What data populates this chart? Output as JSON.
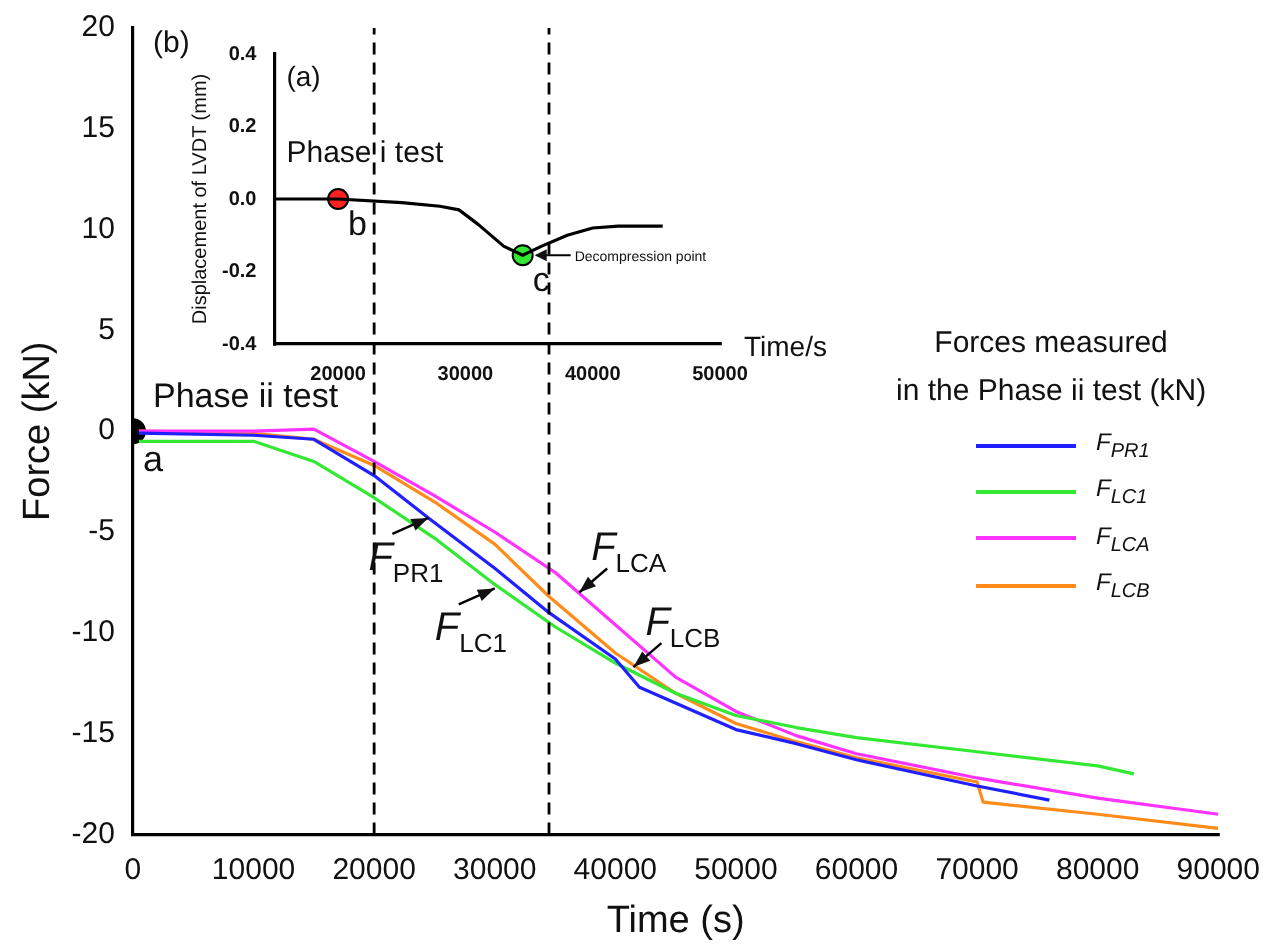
{
  "chart_data": [
    {
      "type": "line",
      "xlabel": "Time (s)",
      "ylabel": "Force (kN)",
      "legend_title": "Forces measured\nin the Phase ii test (kN)",
      "legend": "right",
      "xlim": [
        0,
        90000
      ],
      "xticks": [
        0,
        10000,
        20000,
        30000,
        40000,
        50000,
        60000,
        70000,
        80000,
        90000
      ],
      "ylim": [
        -20,
        20
      ],
      "yticks": [
        -20,
        -15,
        -10,
        -5,
        0,
        5,
        10,
        15,
        20
      ],
      "grid": false,
      "series": [
        {
          "name": "F$_{PR1}$",
          "color": "#1f1fff",
          "x": [
            500,
            10000,
            15000,
            20000,
            24500,
            30000,
            34500,
            40000,
            42000,
            50000,
            55000,
            60000,
            70000,
            76000
          ],
          "values": [
            -0.1,
            -0.2,
            -0.4,
            -2.2,
            -4.3,
            -6.8,
            -9.0,
            -11.3,
            -12.7,
            -14.8,
            -15.5,
            -16.3,
            -17.6,
            -18.3
          ]
        },
        {
          "name": "F$_{LC1}$",
          "color": "#33e833",
          "x": [
            500,
            10000,
            15000,
            20000,
            25000,
            30000,
            35000,
            40000,
            45000,
            50000,
            55000,
            60000,
            70000,
            80000,
            83000
          ],
          "values": [
            -0.5,
            -0.5,
            -1.5,
            -3.3,
            -5.3,
            -7.6,
            -9.7,
            -11.5,
            -13.0,
            -14.1,
            -14.7,
            -15.2,
            -15.9,
            -16.6,
            -17.0
          ]
        },
        {
          "name": "F$_{LCA}$",
          "color": "#ff33ff",
          "x": [
            500,
            10000,
            15000,
            20000,
            25000,
            30000,
            35000,
            40000,
            45000,
            50000,
            55000,
            60000,
            70000,
            80000,
            90000
          ],
          "values": [
            0,
            0,
            0.1,
            -1.5,
            -3.2,
            -5.0,
            -7.0,
            -9.6,
            -12.2,
            -13.9,
            -15.1,
            -16.0,
            -17.2,
            -18.2,
            -19.0
          ]
        },
        {
          "name": "F$_{LCB}$",
          "color": "#ff8c1a",
          "x": [
            500,
            10000,
            15000,
            20000,
            25000,
            30000,
            34500,
            40000,
            45000,
            50000,
            55000,
            60000,
            70000,
            70500,
            80000,
            90000
          ],
          "values": [
            0,
            -0.1,
            -0.4,
            -1.7,
            -3.5,
            -5.6,
            -8.2,
            -11.0,
            -13.0,
            -14.5,
            -15.4,
            -16.2,
            -17.4,
            -18.4,
            -19.0,
            -19.7
          ]
        },
        {
          "type": "scatter",
          "color": "#000000",
          "x": [
            0
          ],
          "values": [
            0
          ]
        }
      ],
      "ref_lines": [
        {
          "axis": "x",
          "value": 20000,
          "line_style": "dashed",
          "color": "#000000"
        },
        {
          "axis": "x",
          "value": 34500,
          "line_style": "dashed",
          "color": "#000000"
        }
      ],
      "annotations": [
        "(b)",
        "Phase ii test",
        {
          "text": "a",
          "x": 0,
          "y": 0
        },
        {
          "text": "F$_{PR1}$",
          "x": 24500,
          "y": -4.3
        },
        {
          "text": "F$_{LC1}$",
          "x": 30000,
          "y": -7.8
        },
        {
          "text": "F$_{LCA}$",
          "x": 37000,
          "y": -8.0
        },
        {
          "text": "F$_{LCB}$",
          "x": 41500,
          "y": -11.7
        }
      ]
    },
    {
      "type": "line",
      "xlabel": "Time/s",
      "ylabel": "Displacement of LVDT (mm)",
      "xlim": [
        15000,
        50000
      ],
      "xticks": [
        20000,
        30000,
        40000,
        50000
      ],
      "ylim": [
        -0.4,
        0.4
      ],
      "yticks": [
        -0.4,
        -0.2,
        {
          "value": 0,
          "label": "0.0"
        },
        0.2,
        0.4
      ],
      "grid": false,
      "series": [
        {
          "color": "#000000",
          "x": [
            15000,
            20000,
            25000,
            28000,
            29500,
            31000,
            33000,
            34500,
            36000,
            38000,
            40000,
            42000,
            44000,
            45500
          ],
          "values": [
            0,
            0,
            -0.01,
            -0.02,
            -0.03,
            -0.07,
            -0.13,
            -0.155,
            -0.13,
            -0.1,
            -0.08,
            -0.075,
            -0.075,
            -0.075
          ]
        },
        {
          "type": "scatter",
          "color": "#ff2020",
          "x": [
            20000
          ],
          "values": [
            0
          ]
        },
        {
          "type": "scatter",
          "color": "#33e833",
          "x": [
            34500
          ],
          "values": [
            -0.155
          ]
        }
      ],
      "annotations": [
        "(a)",
        "Phase i test",
        {
          "text": "b",
          "x": 20000,
          "y": 0
        },
        {
          "text": "c",
          "x": 34500,
          "y": -0.155
        },
        {
          "text": "Decompression point",
          "x": 34500,
          "y": -0.155
        }
      ]
    }
  ]
}
